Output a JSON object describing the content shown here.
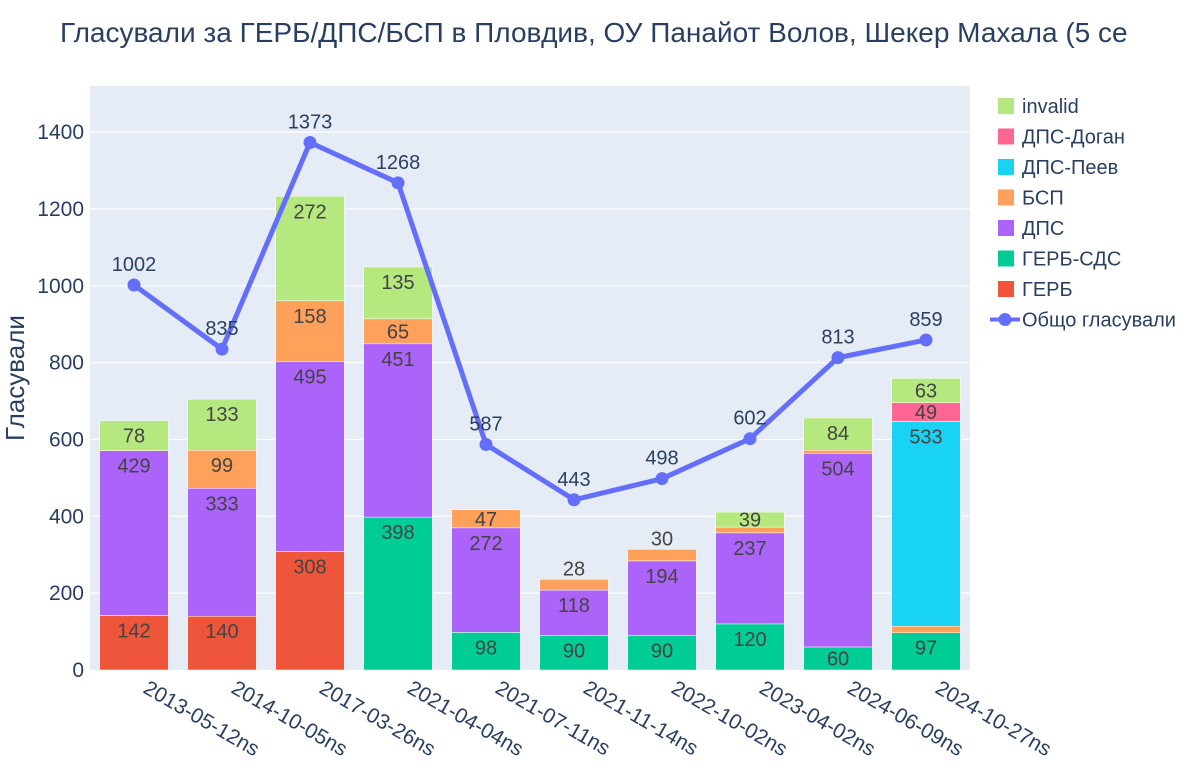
{
  "chart_data": {
    "type": "bar",
    "barmode": "stack",
    "title": "Гласували за ГЕРБ/ДПС/БСП в Пловдив, ОУ Панайот Волов, Шекер Махала (5 се",
    "xlabel": "",
    "ylabel": "Гласували",
    "ylim": [
      0,
      1520
    ],
    "yticks": [
      0,
      200,
      400,
      600,
      800,
      1000,
      1200,
      1400
    ],
    "grid": true,
    "legend_position": "right",
    "categories": [
      "2013-05-12ns",
      "2014-10-05ns",
      "2017-03-26ns",
      "2021-04-04ns",
      "2021-07-11ns",
      "2021-11-14ns",
      "2022-10-02ns",
      "2023-04-02ns",
      "2024-06-09ns",
      "2024-10-27ns"
    ],
    "series": [
      {
        "name": "ГЕРБ",
        "color": "#ef553b",
        "text_color": "#444444",
        "values": [
          142,
          140,
          308,
          0,
          0,
          0,
          0,
          0,
          0,
          0
        ],
        "labels": [
          "142",
          "140",
          "308",
          "",
          "",
          "",
          "",
          "",
          "",
          ""
        ]
      },
      {
        "name": "ГЕРБ-СДС",
        "color": "#00cc96",
        "text_color": "#444444",
        "values": [
          0,
          0,
          0,
          398,
          98,
          90,
          90,
          120,
          60,
          97
        ],
        "labels": [
          "",
          "",
          "",
          "398",
          "98",
          "90",
          "90",
          "120",
          "60",
          "97"
        ]
      },
      {
        "name": "ДПС",
        "color": "#ab63fa",
        "text_color": "#444444",
        "values": [
          429,
          333,
          495,
          451,
          272,
          118,
          194,
          237,
          504,
          0
        ],
        "labels": [
          "429",
          "333",
          "495",
          "451",
          "272",
          "118",
          "194",
          "237",
          "504",
          ""
        ]
      },
      {
        "name": "БСП",
        "color": "#ffa15a",
        "text_color": "#444444",
        "values": [
          0,
          99,
          158,
          65,
          47,
          28,
          30,
          15,
          8,
          17
        ],
        "labels": [
          "",
          "99",
          "158",
          "65",
          "47",
          "28",
          "30",
          "",
          "",
          ""
        ]
      },
      {
        "name": "ДПС-Пеев",
        "color": "#19d3f3",
        "text_color": "#444444",
        "values": [
          0,
          0,
          0,
          0,
          0,
          0,
          0,
          0,
          0,
          533
        ],
        "labels": [
          "",
          "",
          "",
          "",
          "",
          "",
          "",
          "",
          "",
          "533"
        ]
      },
      {
        "name": "ДПС-Доган",
        "color": "#ff6692",
        "text_color": "#444444",
        "values": [
          0,
          0,
          0,
          0,
          0,
          0,
          0,
          0,
          0,
          49
        ],
        "labels": [
          "",
          "",
          "",
          "",
          "",
          "",
          "",
          "",
          "",
          "49"
        ]
      },
      {
        "name": "invalid",
        "color": "#b6e880",
        "text_color": "#444444",
        "values": [
          78,
          133,
          272,
          135,
          0,
          0,
          0,
          39,
          84,
          63
        ],
        "labels": [
          "78",
          "133",
          "272",
          "135",
          "",
          "",
          "",
          "39",
          "84",
          "63"
        ]
      }
    ],
    "line": {
      "name": "Общо гласували",
      "color": "#636efa",
      "values": [
        1002,
        835,
        1373,
        1268,
        587,
        443,
        498,
        602,
        813,
        859
      ]
    },
    "legend_order": [
      "invalid",
      "ДПС-Доган",
      "ДПС-Пеев",
      "БСП",
      "ДПС",
      "ГЕРБ-СДС",
      "ГЕРБ",
      "Общо гласували"
    ]
  }
}
